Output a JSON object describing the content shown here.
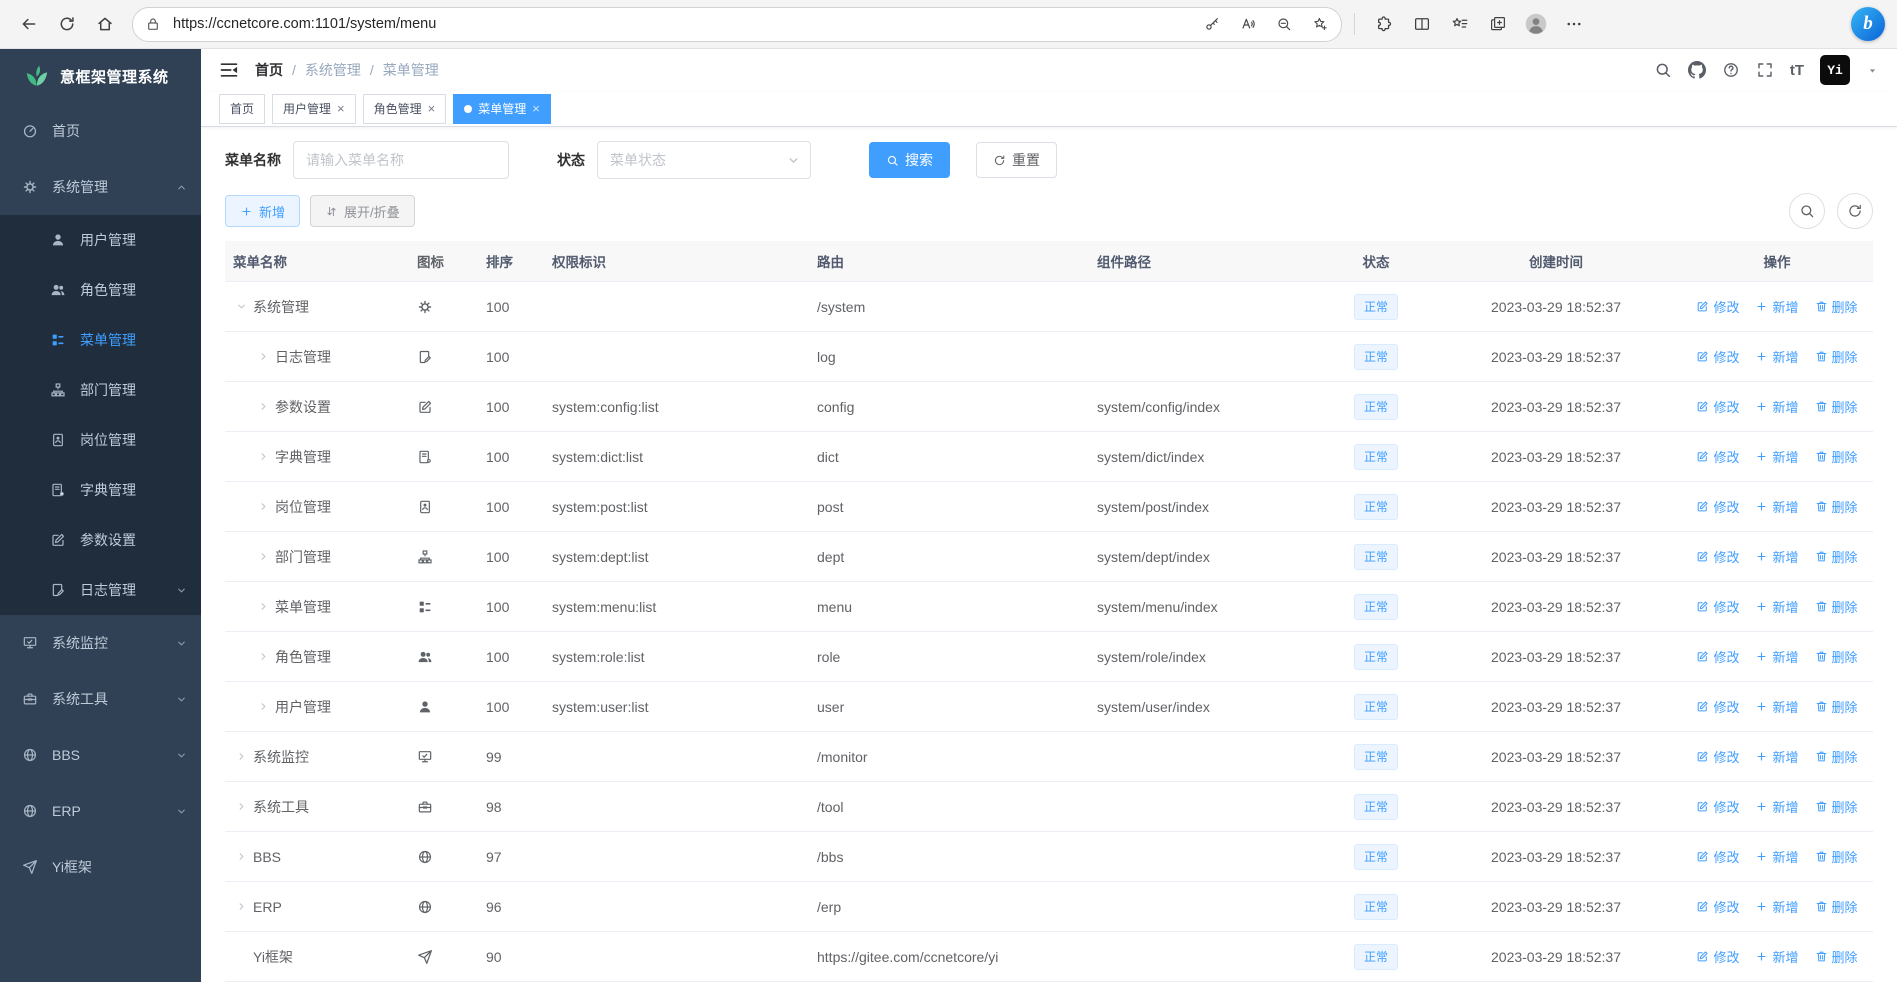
{
  "browser": {
    "url": "https://ccnetcore.com:1101/system/menu",
    "toolbar_left_icons": [
      "back-icon",
      "reload-icon",
      "home-icon"
    ],
    "address_left_icon": "lock-icon",
    "address_right_icons": [
      "key-icon",
      "read-aloud-icon",
      "zoom-out-icon",
      "favorite-star-icon"
    ],
    "toolbar_right_icons": [
      "extensions-icon",
      "split-screen-icon",
      "favorites-bar-icon",
      "collections-icon",
      "profile-icon",
      "more-icon"
    ],
    "bing_glyph": "b"
  },
  "sidebar": {
    "logo": {
      "title": "意框架管理系统",
      "icon": "leaf"
    },
    "items": [
      {
        "key": "home",
        "label": "首页",
        "icon": "gauge",
        "level": 0
      },
      {
        "key": "system",
        "label": "系统管理",
        "icon": "gear",
        "level": 0,
        "chevron": "up"
      },
      {
        "key": "user",
        "label": "用户管理",
        "icon": "user",
        "level": 1
      },
      {
        "key": "role",
        "label": "角色管理",
        "icon": "users",
        "level": 1
      },
      {
        "key": "menu",
        "label": "菜单管理",
        "icon": "menu-tree",
        "level": 1,
        "active": true
      },
      {
        "key": "dept",
        "label": "部门管理",
        "icon": "org",
        "level": 1
      },
      {
        "key": "post",
        "label": "岗位管理",
        "icon": "badge",
        "level": 1
      },
      {
        "key": "dict",
        "label": "字典管理",
        "icon": "book",
        "level": 1
      },
      {
        "key": "config",
        "label": "参数设置",
        "icon": "edit-sq",
        "level": 1
      },
      {
        "key": "log",
        "label": "日志管理",
        "icon": "log",
        "level": 1,
        "chevron": "down"
      },
      {
        "key": "monitor",
        "label": "系统监控",
        "icon": "monitor",
        "level": 0,
        "chevron": "down"
      },
      {
        "key": "tool",
        "label": "系统工具",
        "icon": "toolbox",
        "level": 0,
        "chevron": "down"
      },
      {
        "key": "bbs",
        "label": "BBS",
        "icon": "globe",
        "level": 0,
        "chevron": "down"
      },
      {
        "key": "erp",
        "label": "ERP",
        "icon": "globe",
        "level": 0,
        "chevron": "down"
      },
      {
        "key": "yi",
        "label": "Yi框架",
        "icon": "send",
        "level": 0
      }
    ]
  },
  "header": {
    "breadcrumb": [
      "首页",
      "系统管理",
      "菜单管理"
    ],
    "right_icons": [
      "search-icon",
      "github-icon",
      "question-icon",
      "fullscreen-icon",
      "font-size-icon"
    ],
    "font_size_glyph": "tT",
    "avatar_glyph": "Yi"
  },
  "tabs": [
    {
      "label": "首页",
      "closable": false,
      "active": false
    },
    {
      "label": "用户管理",
      "closable": true,
      "active": false
    },
    {
      "label": "角色管理",
      "closable": true,
      "active": false
    },
    {
      "label": "菜单管理",
      "closable": true,
      "active": true
    }
  ],
  "filters": {
    "menu_name_label": "菜单名称",
    "menu_name_placeholder": "请输入菜单名称",
    "menu_name_value": "",
    "status_label": "状态",
    "status_placeholder": "菜单状态",
    "search_button": "搜索",
    "reset_button": "重置"
  },
  "toolbar": {
    "add_button": "新增",
    "expand_collapse_button": "展开/折叠"
  },
  "table": {
    "headers": [
      "菜单名称",
      "图标",
      "排序",
      "权限标识",
      "路由",
      "组件路径",
      "状态",
      "创建时间",
      "操作"
    ],
    "action_labels": [
      "修改",
      "新增",
      "删除"
    ],
    "rows": [
      {
        "name": "系统管理",
        "icon": "gear",
        "order": "100",
        "perms": "",
        "path": "/system",
        "component": "",
        "status": "正常",
        "created": "2023-03-29 18:52:37",
        "level": 0,
        "expand": "open"
      },
      {
        "name": "日志管理",
        "icon": "log",
        "order": "100",
        "perms": "",
        "path": "log",
        "component": "",
        "status": "正常",
        "created": "2023-03-29 18:52:37",
        "level": 1,
        "expand": "closed"
      },
      {
        "name": "参数设置",
        "icon": "edit-sq",
        "order": "100",
        "perms": "system:config:list",
        "path": "config",
        "component": "system/config/index",
        "status": "正常",
        "created": "2023-03-29 18:52:37",
        "level": 1,
        "expand": "closed"
      },
      {
        "name": "字典管理",
        "icon": "book",
        "order": "100",
        "perms": "system:dict:list",
        "path": "dict",
        "component": "system/dict/index",
        "status": "正常",
        "created": "2023-03-29 18:52:37",
        "level": 1,
        "expand": "closed"
      },
      {
        "name": "岗位管理",
        "icon": "badge",
        "order": "100",
        "perms": "system:post:list",
        "path": "post",
        "component": "system/post/index",
        "status": "正常",
        "created": "2023-03-29 18:52:37",
        "level": 1,
        "expand": "closed"
      },
      {
        "name": "部门管理",
        "icon": "org",
        "order": "100",
        "perms": "system:dept:list",
        "path": "dept",
        "component": "system/dept/index",
        "status": "正常",
        "created": "2023-03-29 18:52:37",
        "level": 1,
        "expand": "closed"
      },
      {
        "name": "菜单管理",
        "icon": "menu-tree",
        "order": "100",
        "perms": "system:menu:list",
        "path": "menu",
        "component": "system/menu/index",
        "status": "正常",
        "created": "2023-03-29 18:52:37",
        "level": 1,
        "expand": "closed"
      },
      {
        "name": "角色管理",
        "icon": "users",
        "order": "100",
        "perms": "system:role:list",
        "path": "role",
        "component": "system/role/index",
        "status": "正常",
        "created": "2023-03-29 18:52:37",
        "level": 1,
        "expand": "closed"
      },
      {
        "name": "用户管理",
        "icon": "user",
        "order": "100",
        "perms": "system:user:list",
        "path": "user",
        "component": "system/user/index",
        "status": "正常",
        "created": "2023-03-29 18:52:37",
        "level": 1,
        "expand": "closed"
      },
      {
        "name": "系统监控",
        "icon": "monitor",
        "order": "99",
        "perms": "",
        "path": "/monitor",
        "component": "",
        "status": "正常",
        "created": "2023-03-29 18:52:37",
        "level": 0,
        "expand": "closed"
      },
      {
        "name": "系统工具",
        "icon": "toolbox",
        "order": "98",
        "perms": "",
        "path": "/tool",
        "component": "",
        "status": "正常",
        "created": "2023-03-29 18:52:37",
        "level": 0,
        "expand": "closed"
      },
      {
        "name": "BBS",
        "icon": "globe",
        "order": "97",
        "perms": "",
        "path": "/bbs",
        "component": "",
        "status": "正常",
        "created": "2023-03-29 18:52:37",
        "level": 0,
        "expand": "closed"
      },
      {
        "name": "ERP",
        "icon": "globe",
        "order": "96",
        "perms": "",
        "path": "/erp",
        "component": "",
        "status": "正常",
        "created": "2023-03-29 18:52:37",
        "level": 0,
        "expand": "closed"
      },
      {
        "name": "Yi框架",
        "icon": "send",
        "order": "90",
        "perms": "",
        "path": "https://gitee.com/ccnetcore/yi",
        "component": "",
        "status": "正常",
        "created": "2023-03-29 18:52:37",
        "level": 0,
        "expand": "none"
      }
    ]
  },
  "colors": {
    "primary": "#409eff",
    "sidebar_bg": "#304156",
    "submenu_bg": "#1f2d3d",
    "active_tab_bg": "#409eff",
    "tag_bg": "#ecf5ff",
    "tag_border": "#d9ecff",
    "logo_green": "#43b883"
  }
}
